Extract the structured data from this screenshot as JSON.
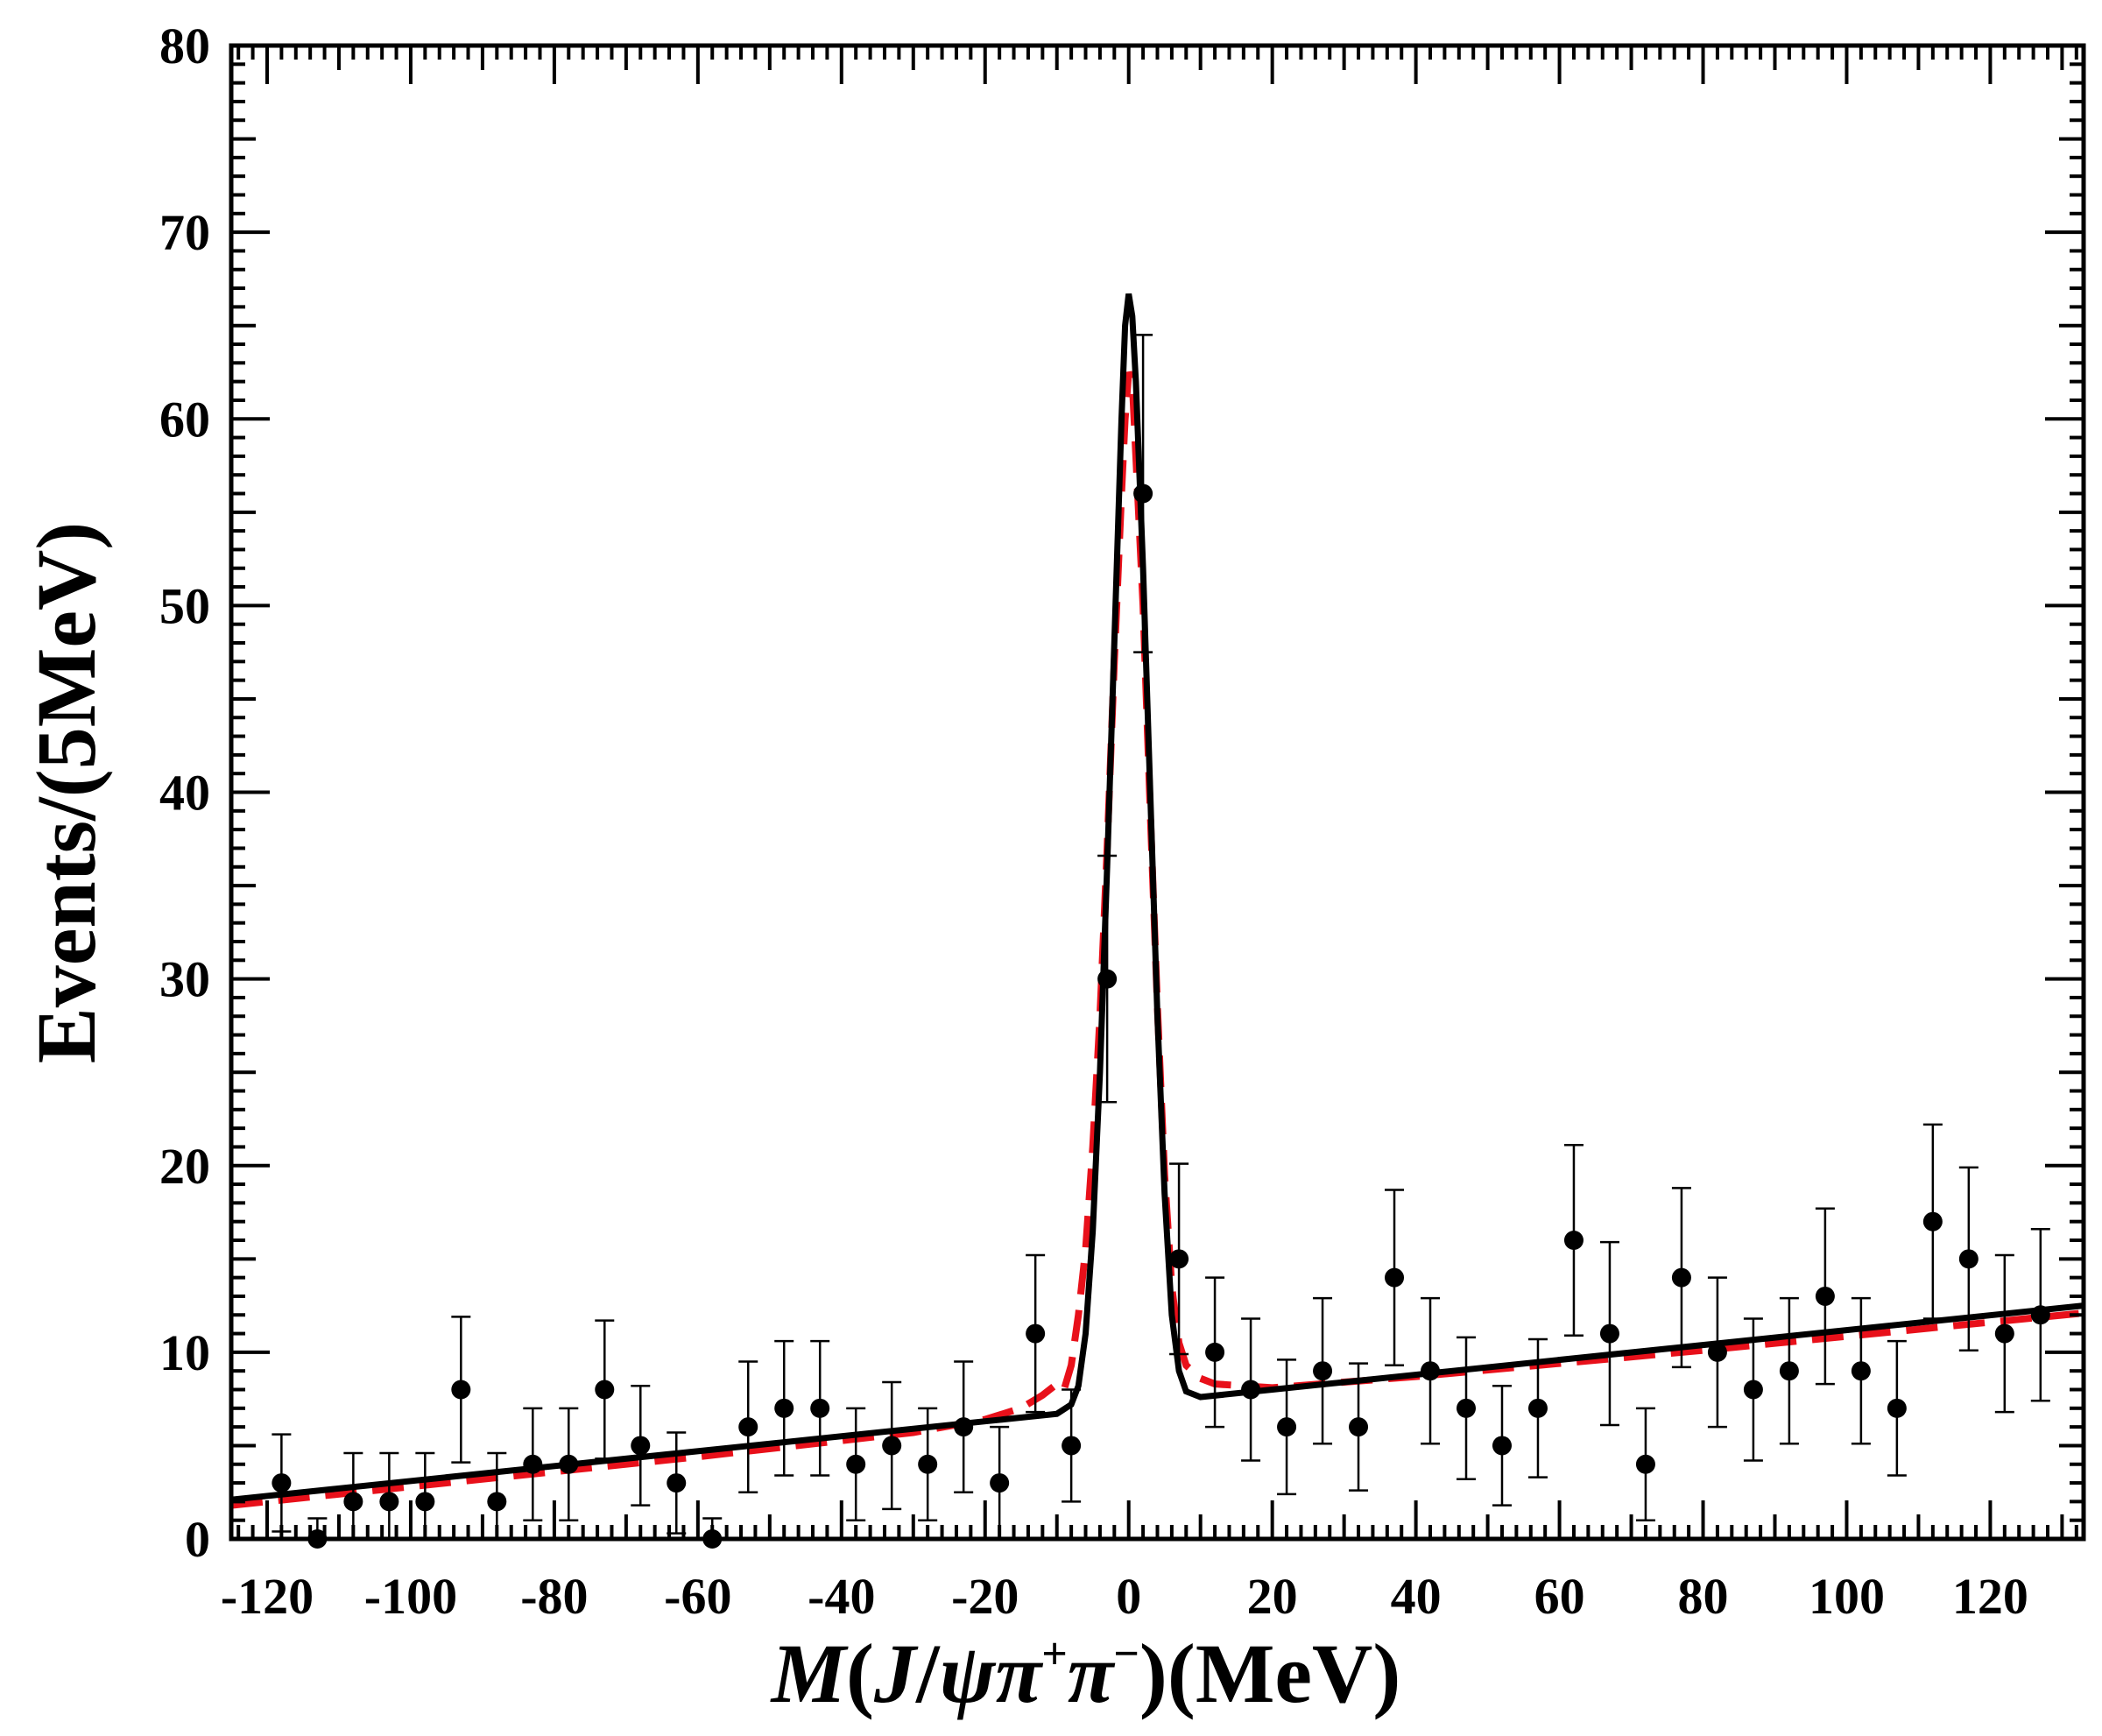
{
  "chart_data": {
    "type": "scatter",
    "xlabel": {
      "main": "M",
      "open": "(",
      "j": "J",
      "slash": "/",
      "psi": "ψπ",
      "plus": "+",
      "pi2": "π",
      "minus": "−",
      "close": ")",
      "unit": "(MeV)"
    },
    "ylabel": "Events/(5MeV)",
    "xlim": [
      -125,
      133
    ],
    "ylim": [
      0,
      80
    ],
    "xticks": [
      -120,
      -100,
      -80,
      -60,
      -40,
      -20,
      0,
      20,
      40,
      60,
      80,
      100,
      120
    ],
    "yticks": [
      0,
      10,
      20,
      30,
      40,
      50,
      60,
      70,
      80
    ],
    "grid": false,
    "legend": "none",
    "colors": {
      "data": "#000000",
      "fit_solid": "#000000",
      "fit_dashed": "#e8101a"
    },
    "data_points": [
      {
        "x": -118,
        "y": 3,
        "err": 2.6
      },
      {
        "x": -113,
        "y": 0,
        "err": 1.1
      },
      {
        "x": -108,
        "y": 2,
        "err": 2.6
      },
      {
        "x": -103,
        "y": 2,
        "err": 2.6
      },
      {
        "x": -98,
        "y": 2,
        "err": 2.6
      },
      {
        "x": -93,
        "y": 8,
        "err": 3.9
      },
      {
        "x": -88,
        "y": 2,
        "err": 2.6
      },
      {
        "x": -83,
        "y": 4,
        "err": 3.0
      },
      {
        "x": -78,
        "y": 4,
        "err": 3.0
      },
      {
        "x": -73,
        "y": 8,
        "err": 3.7
      },
      {
        "x": -68,
        "y": 5,
        "err": 3.2
      },
      {
        "x": -63,
        "y": 3,
        "err": 2.7
      },
      {
        "x": -58,
        "y": 0,
        "err": 1.1
      },
      {
        "x": -53,
        "y": 6,
        "err": 3.5
      },
      {
        "x": -48,
        "y": 7,
        "err": 3.6
      },
      {
        "x": -43,
        "y": 7,
        "err": 3.6
      },
      {
        "x": -38,
        "y": 4,
        "err": 3.0
      },
      {
        "x": -33,
        "y": 5,
        "err": 3.4
      },
      {
        "x": -28,
        "y": 4,
        "err": 3.0
      },
      {
        "x": -23,
        "y": 6,
        "err": 3.5
      },
      {
        "x": -18,
        "y": 3,
        "err": 3.0
      },
      {
        "x": -13,
        "y": 11,
        "err": 4.2
      },
      {
        "x": -8,
        "y": 5,
        "err": 3.0
      },
      {
        "x": -3,
        "y": 30,
        "err": 6.6
      },
      {
        "x": 2,
        "y": 56,
        "err": 8.5
      },
      {
        "x": 7,
        "y": 15,
        "err": 5.1
      },
      {
        "x": 12,
        "y": 10,
        "err": 4.0
      },
      {
        "x": 17,
        "y": 8,
        "err": 3.8
      },
      {
        "x": 22,
        "y": 6,
        "err": 3.6
      },
      {
        "x": 27,
        "y": 9,
        "err": 3.9
      },
      {
        "x": 32,
        "y": 6,
        "err": 3.4
      },
      {
        "x": 37,
        "y": 14,
        "err": 4.7
      },
      {
        "x": 42,
        "y": 9,
        "err": 3.9
      },
      {
        "x": 47,
        "y": 7,
        "err": 3.8
      },
      {
        "x": 52,
        "y": 5,
        "err": 3.2
      },
      {
        "x": 57,
        "y": 7,
        "err": 3.7
      },
      {
        "x": 62,
        "y": 16,
        "err": 5.1
      },
      {
        "x": 67,
        "y": 11,
        "err": 4.9
      },
      {
        "x": 72,
        "y": 4,
        "err": 3.0
      },
      {
        "x": 77,
        "y": 14,
        "err": 4.8
      },
      {
        "x": 82,
        "y": 10,
        "err": 4.0
      },
      {
        "x": 87,
        "y": 8,
        "err": 3.8
      },
      {
        "x": 92,
        "y": 9,
        "err": 3.9
      },
      {
        "x": 97,
        "y": 13,
        "err": 4.7
      },
      {
        "x": 102,
        "y": 9,
        "err": 3.9
      },
      {
        "x": 107,
        "y": 7,
        "err": 3.6
      },
      {
        "x": 112,
        "y": 17,
        "err": 5.2
      },
      {
        "x": 117,
        "y": 15,
        "err": 4.9
      },
      {
        "x": 122,
        "y": 11,
        "err": 4.2
      },
      {
        "x": 127,
        "y": 12,
        "err": 4.6
      }
    ],
    "fit_solid": [
      [
        -125,
        2.1
      ],
      [
        -20,
        6.3
      ],
      [
        -10,
        6.7
      ],
      [
        -8,
        7.2
      ],
      [
        -7,
        8.2
      ],
      [
        -6,
        11.0
      ],
      [
        -5,
        16.5
      ],
      [
        -4,
        25.0
      ],
      [
        -3,
        36.0
      ],
      [
        -2,
        48.0
      ],
      [
        -1,
        60.0
      ],
      [
        -0.5,
        65.0
      ],
      [
        0,
        66.7
      ],
      [
        0.5,
        65.5
      ],
      [
        1,
        62.0
      ],
      [
        2,
        52.0
      ],
      [
        3,
        40.0
      ],
      [
        4,
        28.0
      ],
      [
        5,
        18.5
      ],
      [
        6,
        12.0
      ],
      [
        7,
        9.0
      ],
      [
        8,
        7.9
      ],
      [
        10,
        7.6
      ],
      [
        20,
        8.0
      ],
      [
        133,
        12.5
      ]
    ],
    "fit_dashed": [
      [
        -125,
        1.8
      ],
      [
        -60,
        4.4
      ],
      [
        -30,
        5.7
      ],
      [
        -20,
        6.4
      ],
      [
        -15,
        7.0
      ],
      [
        -12,
        7.7
      ],
      [
        -10,
        8.3
      ],
      [
        -9,
        8.0
      ],
      [
        -8,
        9.3
      ],
      [
        -7,
        12.0
      ],
      [
        -6,
        15.5
      ],
      [
        -5,
        21.0
      ],
      [
        -4,
        28.0
      ],
      [
        -3,
        37.0
      ],
      [
        -2,
        47.0
      ],
      [
        -1,
        56.0
      ],
      [
        -0.5,
        60.0
      ],
      [
        0,
        62.5
      ],
      [
        0.5,
        62.0
      ],
      [
        1,
        58.0
      ],
      [
        2,
        50.0
      ],
      [
        3,
        39.0
      ],
      [
        4,
        28.5
      ],
      [
        5,
        19.5
      ],
      [
        6,
        13.5
      ],
      [
        7,
        10.5
      ],
      [
        8,
        9.3
      ],
      [
        10,
        8.6
      ],
      [
        12,
        8.3
      ],
      [
        20,
        8.1
      ],
      [
        40,
        8.7
      ],
      [
        80,
        10.1
      ],
      [
        133,
        12.1
      ]
    ]
  }
}
